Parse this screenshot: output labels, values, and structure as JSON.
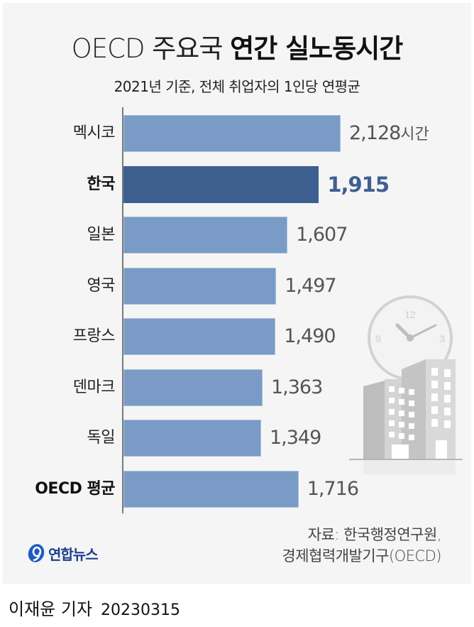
{
  "header": {
    "title_light": "OECD 주요국 ",
    "title_bold": "연간 실노동시간",
    "subtitle": "2021년 기준, 전체 취업자의 1인당 연평균"
  },
  "chart_data": {
    "type": "bar",
    "orientation": "horizontal",
    "title": "OECD 주요국 연간 실노동시간",
    "subtitle": "2021년 기준, 전체 취업자의 1인당 연평균",
    "categories": [
      "멕시코",
      "한국",
      "일본",
      "영국",
      "프랑스",
      "덴마크",
      "독일",
      "OECD 평균"
    ],
    "values": [
      2128,
      1915,
      1607,
      1497,
      1490,
      1363,
      1349,
      1716
    ],
    "value_labels": [
      "2,128",
      "1,915",
      "1,607",
      "1,497",
      "1,490",
      "1,363",
      "1,349",
      "1,716"
    ],
    "unit": "시간",
    "highlight": "한국",
    "xlabel": "",
    "ylabel": "",
    "grid": false,
    "legend": null,
    "colors": {
      "default": "#7a9bc5",
      "highlight": "#3e6090",
      "highlight_label": "#3e6090"
    }
  },
  "rows": [
    {
      "label": "멕시코",
      "value": "2,128",
      "unit": "시간"
    },
    {
      "label": "한국",
      "value": "1,915",
      "unit": ""
    },
    {
      "label": "일본",
      "value": "1,607",
      "unit": ""
    },
    {
      "label": "영국",
      "value": "1,497",
      "unit": ""
    },
    {
      "label": "프랑스",
      "value": "1,490",
      "unit": ""
    },
    {
      "label": "덴마크",
      "value": "1,363",
      "unit": ""
    },
    {
      "label": "독일",
      "value": "1,349",
      "unit": ""
    },
    {
      "label": "OECD 평균",
      "value": "1,716",
      "unit": ""
    }
  ],
  "illustration": {
    "clock_numbers": [
      "12",
      "3",
      "9"
    ]
  },
  "footer": {
    "source_line1": "자료: 한국행정연구원,",
    "source_line2": "경제협력개발기구(OECD)",
    "logo_text": "연합뉴스",
    "byline": "이재윤 기자",
    "date": "20230315"
  }
}
